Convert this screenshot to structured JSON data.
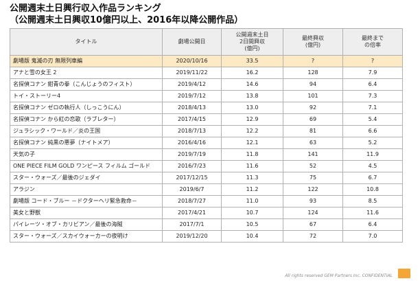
{
  "title": {
    "line1": "公開週末土日興行収入作品ランキング",
    "line2": "（公開週末土日興収10億円以上、2016年以降公開作品）"
  },
  "table": {
    "headers": {
      "title": "タイトル",
      "release_date": "劇場公開日",
      "weekend_gross": [
        "公開週末土日",
        "2日間興収",
        "(億円)"
      ],
      "final_gross": [
        "最終興収",
        "(億円)"
      ],
      "multiplier": [
        "最終まで",
        "の倍率"
      ]
    },
    "rows": [
      {
        "title": "劇場版 鬼滅の刃 無限列車編",
        "date": "2020/10/16",
        "weekend": "33.5",
        "final": "?",
        "ratio": "?"
      },
      {
        "title": "アナと雪の女王 2",
        "date": "2019/11/22",
        "weekend": "16.2",
        "final": "128",
        "ratio": "7.9"
      },
      {
        "title": "名探偵コナン 紺青の拳（こんじょうのフィスト）",
        "date": "2019/4/12",
        "weekend": "14.6",
        "final": "94",
        "ratio": "6.4"
      },
      {
        "title": "トイ・ストーリー4",
        "date": "2019/7/12",
        "weekend": "13.8",
        "final": "101",
        "ratio": "7.3"
      },
      {
        "title": "名探偵コナン ゼロの執行人（しっこうにん）",
        "date": "2018/4/13",
        "weekend": "13.0",
        "final": "92",
        "ratio": "7.1"
      },
      {
        "title": "名探偵コナン から紅の恋歌（ラブレター）",
        "date": "2017/4/15",
        "weekend": "12.9",
        "final": "69",
        "ratio": "5.4"
      },
      {
        "title": "ジュラシック・ワールド／炎の王国",
        "date": "2018/7/13",
        "weekend": "12.2",
        "final": "81",
        "ratio": "6.6"
      },
      {
        "title": "名探偵コナン 純黒の悪夢（ナイトメア）",
        "date": "2016/4/16",
        "weekend": "12.1",
        "final": "63",
        "ratio": "5.2"
      },
      {
        "title": "天気の子",
        "date": "2019/7/19",
        "weekend": "11.8",
        "final": "141",
        "ratio": "11.9"
      },
      {
        "title": "ONE PIECE FILM GOLD ワンピース フィルム ゴールド",
        "date": "2016/7/23",
        "weekend": "11.6",
        "final": "52",
        "ratio": "4.5"
      },
      {
        "title": "スター・ウォーズ／最後のジェダイ",
        "date": "2017/12/15",
        "weekend": "11.3",
        "final": "75",
        "ratio": "6.7"
      },
      {
        "title": "アラジン",
        "date": "2019/6/7",
        "weekend": "11.2",
        "final": "122",
        "ratio": "10.8"
      },
      {
        "title": "劇場版 コード・ブルー －ドクターヘリ緊急救命－",
        "date": "2018/7/27",
        "weekend": "11.0",
        "final": "93",
        "ratio": "8.5"
      },
      {
        "title": "美女と野獣",
        "date": "2017/4/21",
        "weekend": "10.7",
        "final": "124",
        "ratio": "11.6"
      },
      {
        "title": "パイレーツ・オブ・カリビアン／最後の海賊",
        "date": "2017/7/1",
        "weekend": "10.5",
        "final": "67",
        "ratio": "6.4"
      },
      {
        "title": "スター・ウォーズ／スカイウォーカーの夜明け",
        "date": "2019/12/20",
        "weekend": "10.4",
        "final": "72",
        "ratio": "7.0"
      }
    ]
  },
  "footer": "All rights reserved GEM Partners Inc. CONFIDENTIAL",
  "colors": {
    "highlight_row": "#fde9c4",
    "header_bg": "#eeeeee",
    "brand_mark": "#f4a637"
  }
}
